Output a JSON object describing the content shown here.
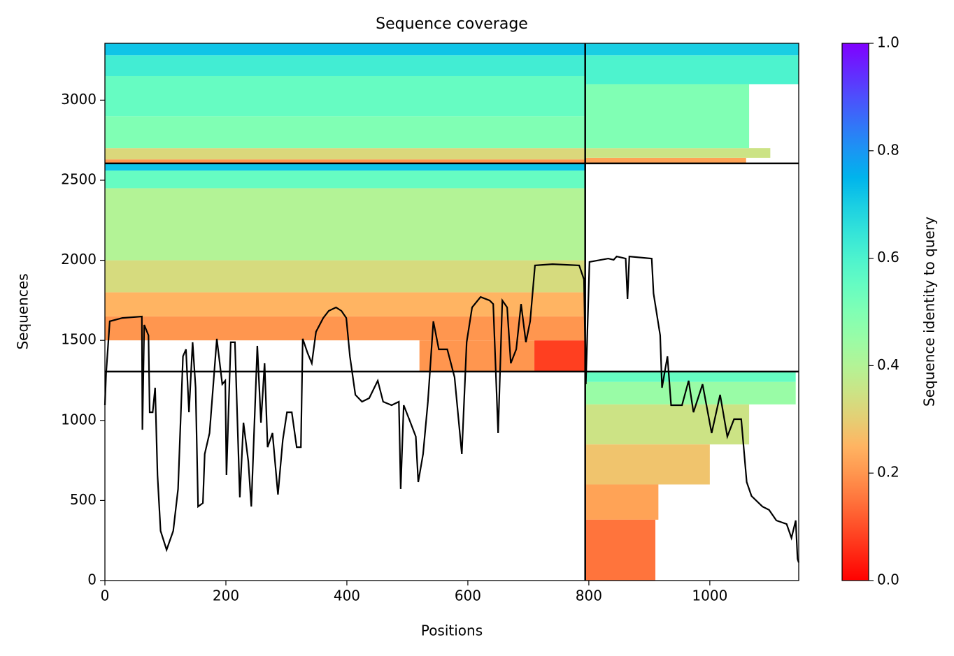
{
  "chart_data": {
    "type": "coverage",
    "title": "Sequence coverage",
    "xlabel": "Positions",
    "ylabel": "Sequences",
    "colorbar_label": "Sequence identity to query",
    "colormap": "rainbow_r",
    "xlim": [
      0,
      1147
    ],
    "ylim": [
      0,
      3355
    ],
    "xticks": [
      0,
      200,
      400,
      600,
      800,
      1000
    ],
    "yticks": [
      0,
      500,
      1000,
      1500,
      2000,
      2500,
      3000
    ],
    "clim": [
      0,
      1
    ],
    "cticks": [
      {
        "value": 0,
        "label": "0.0"
      },
      {
        "value": 0.2,
        "label": "0.2"
      },
      {
        "value": 0.4,
        "label": "0.4"
      },
      {
        "value": 0.6,
        "label": "0.6"
      },
      {
        "value": 0.8,
        "label": "0.8"
      },
      {
        "value": 1,
        "label": "1.0"
      }
    ],
    "dividers": {
      "x": [
        794
      ],
      "y": [
        1305,
        2605
      ]
    },
    "blocks": [
      {
        "x": [
          0,
          794
        ],
        "y": [
          2605,
          2630
        ],
        "identity": 0.2
      },
      {
        "x": [
          0,
          794
        ],
        "y": [
          2630,
          2700
        ],
        "identity": 0.32
      },
      {
        "x": [
          0,
          794
        ],
        "y": [
          2700,
          2900
        ],
        "identity": 0.5
      },
      {
        "x": [
          0,
          794
        ],
        "y": [
          2900,
          3150
        ],
        "identity": 0.55
      },
      {
        "x": [
          0,
          794
        ],
        "y": [
          3150,
          3280
        ],
        "identity": 0.62
      },
      {
        "x": [
          0,
          794
        ],
        "y": [
          3280,
          3355
        ],
        "identity": 0.72
      },
      {
        "x": [
          794,
          1060
        ],
        "y": [
          2605,
          2640
        ],
        "identity": 0.22
      },
      {
        "x": [
          794,
          1100
        ],
        "y": [
          2640,
          2700
        ],
        "identity": 0.35
      },
      {
        "x": [
          794,
          1065
        ],
        "y": [
          2700,
          3100
        ],
        "identity": 0.5
      },
      {
        "x": [
          794,
          1147
        ],
        "y": [
          3100,
          3280
        ],
        "identity": 0.6
      },
      {
        "x": [
          794,
          1147
        ],
        "y": [
          3280,
          3355
        ],
        "identity": 0.7
      },
      {
        "x": [
          520,
          710
        ],
        "y": [
          1305,
          1500
        ],
        "identity": 0.2
      },
      {
        "x": [
          710,
          794
        ],
        "y": [
          1305,
          1500
        ],
        "identity": 0.08
      },
      {
        "x": [
          0,
          794
        ],
        "y": [
          1500,
          1650
        ],
        "identity": 0.2
      },
      {
        "x": [
          0,
          794
        ],
        "y": [
          1650,
          1800
        ],
        "identity": 0.25
      },
      {
        "x": [
          0,
          794
        ],
        "y": [
          1800,
          2000
        ],
        "identity": 0.33
      },
      {
        "x": [
          0,
          794
        ],
        "y": [
          2000,
          2450
        ],
        "identity": 0.4
      },
      {
        "x": [
          0,
          794
        ],
        "y": [
          2450,
          2560
        ],
        "identity": 0.55
      },
      {
        "x": [
          0,
          794
        ],
        "y": [
          2560,
          2605
        ],
        "identity": 0.72
      },
      {
        "x": [
          794,
          1142
        ],
        "y": [
          1240,
          1305
        ],
        "identity": 0.55
      },
      {
        "x": [
          794,
          1142
        ],
        "y": [
          1100,
          1240
        ],
        "identity": 0.45
      },
      {
        "x": [
          794,
          1065
        ],
        "y": [
          850,
          1100
        ],
        "identity": 0.35
      },
      {
        "x": [
          794,
          1000
        ],
        "y": [
          600,
          850
        ],
        "identity": 0.28
      },
      {
        "x": [
          794,
          915
        ],
        "y": [
          380,
          600
        ],
        "identity": 0.22
      },
      {
        "x": [
          794,
          910
        ],
        "y": [
          0,
          380
        ],
        "identity": 0.15
      }
    ],
    "coverage_line": {
      "x": [
        0,
        2,
        8,
        29,
        61,
        62,
        65,
        72,
        74,
        79,
        83,
        87,
        92,
        102,
        113,
        121,
        129,
        134,
        139,
        145,
        150,
        154,
        162,
        165,
        173,
        185,
        194,
        199,
        201,
        208,
        215,
        223,
        229,
        237,
        242,
        252,
        258,
        264,
        269,
        277,
        286,
        294,
        301,
        309,
        317,
        324,
        327,
        335,
        342,
        349,
        361,
        370,
        382,
        391,
        399,
        405,
        414,
        425,
        437,
        451,
        460,
        474,
        486,
        489,
        494,
        503,
        514,
        518,
        526,
        534,
        543,
        552,
        566,
        578,
        590,
        598,
        607,
        621,
        636,
        642,
        650,
        657,
        665,
        671,
        680,
        688,
        696,
        703,
        711,
        740,
        784,
        792,
        795,
        801,
        832,
        841,
        846,
        861,
        864,
        867,
        904,
        907,
        918,
        921,
        930,
        936,
        954,
        965,
        973,
        988,
        1003,
        1017,
        1029,
        1040,
        1052,
        1061,
        1069,
        1087,
        1098,
        1110,
        1127,
        1135,
        1142,
        1145,
        1147
      ],
      "y": [
        1095,
        1291,
        1619,
        1640,
        1649,
        942,
        1597,
        1531,
        1051,
        1051,
        1204,
        659,
        310,
        192,
        310,
        572,
        1400,
        1444,
        1051,
        1488,
        1204,
        462,
        484,
        790,
        921,
        1510,
        1226,
        1248,
        659,
        1488,
        1488,
        519,
        986,
        746,
        462,
        1466,
        986,
        1357,
        833,
        921,
        537,
        877,
        1051,
        1051,
        833,
        833,
        1510,
        1422,
        1357,
        1553,
        1640,
        1684,
        1706,
        1684,
        1640,
        1400,
        1160,
        1117,
        1139,
        1248,
        1117,
        1095,
        1117,
        572,
        1095,
        1008,
        899,
        615,
        790,
        1117,
        1619,
        1444,
        1444,
        1270,
        790,
        1488,
        1706,
        1771,
        1749,
        1727,
        921,
        1749,
        1706,
        1357,
        1444,
        1727,
        1488,
        1619,
        1968,
        1976,
        1968,
        1880,
        1226,
        1990,
        2011,
        2003,
        2024,
        2011,
        1758,
        2024,
        2011,
        1793,
        1531,
        1204,
        1400,
        1095,
        1095,
        1248,
        1051,
        1226,
        921,
        1160,
        899,
        1008,
        1008,
        615,
        528,
        462,
        441,
        375,
        353,
        266,
        375,
        135,
        113
      ]
    }
  }
}
